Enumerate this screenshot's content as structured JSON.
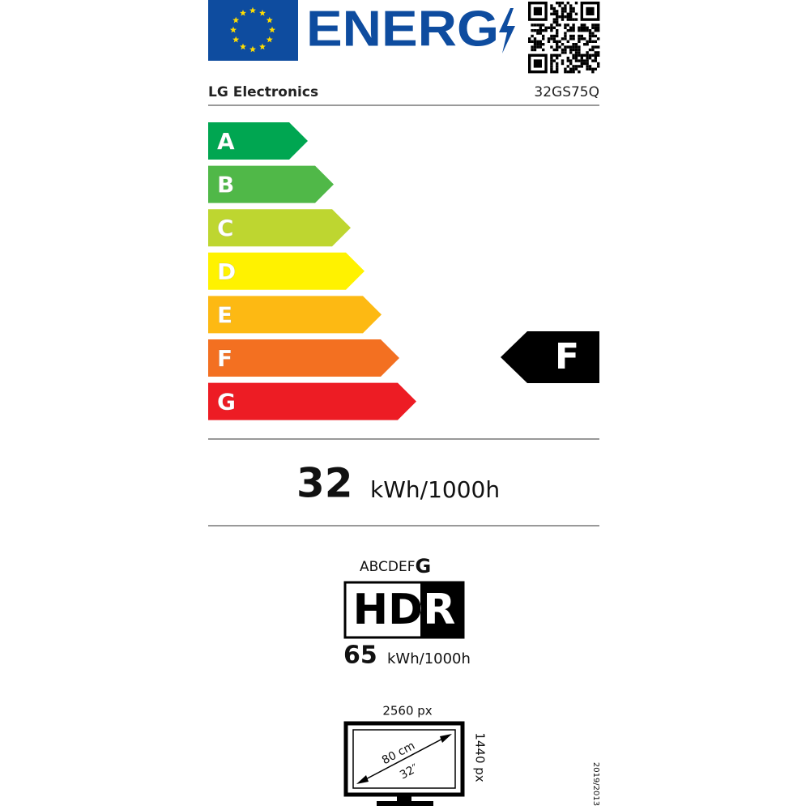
{
  "header": {
    "logo_text": "ENERG",
    "supplier": "LG Electronics",
    "model": "32GS75Q"
  },
  "scale": {
    "classes": [
      {
        "label": "A",
        "color": "#00a651"
      },
      {
        "label": "B",
        "color": "#50b848"
      },
      {
        "label": "C",
        "color": "#bed630"
      },
      {
        "label": "D",
        "color": "#fff200"
      },
      {
        "label": "E",
        "color": "#fdb913"
      },
      {
        "label": "F",
        "color": "#f37021"
      },
      {
        "label": "G",
        "color": "#ed1c24"
      }
    ],
    "rating": "F"
  },
  "consumption": {
    "value": "32",
    "unit": "kWh/1000h"
  },
  "hdr": {
    "scale_prefix": "ABCDEF",
    "class": "G",
    "logo": "HDR",
    "value": "65",
    "unit": "kWh/1000h"
  },
  "screen": {
    "width_px": "2560 px",
    "height_px": "1440 px",
    "diagonal_cm": "80 cm",
    "diagonal_in": "32″"
  },
  "regulation": "2019/2013"
}
